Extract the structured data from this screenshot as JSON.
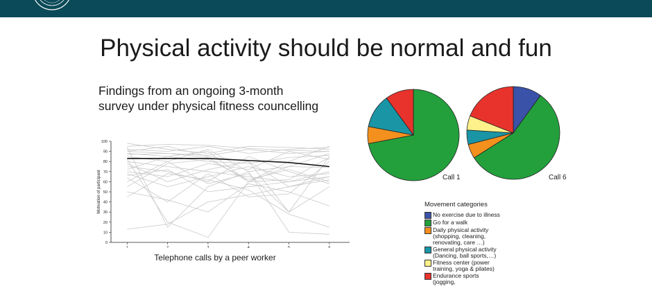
{
  "header": {
    "bar_color": "#0b4a58",
    "logo_icon": "university-seal-icon"
  },
  "slide": {
    "title": "Physical activity should be normal and fun",
    "subtitle_lines": [
      "Findings from an ongoing 3-month",
      "survey under physical fitness councelling"
    ]
  },
  "chart_data": [
    {
      "type": "line",
      "title": "",
      "xlabel": "Telephone calls by a peer worker",
      "ylabel": "Motivation of participant",
      "x": [
        1,
        2,
        3,
        4,
        5,
        6
      ],
      "xlim": [
        0.6,
        6.5
      ],
      "ylim": [
        0,
        100
      ],
      "yticks": [
        "0",
        "10",
        "20",
        "30",
        "40",
        "50",
        "60",
        "70",
        "80",
        "90",
        "100"
      ],
      "xticks": [
        "1",
        "2",
        "3",
        "4",
        "5",
        "6"
      ],
      "mean": {
        "values": [
          83,
          83,
          83,
          81,
          79,
          75
        ],
        "color": "#111111"
      },
      "individual_color": "#c8c8c8",
      "individual": [
        [
          95,
          97,
          96,
          93,
          91,
          90
        ],
        [
          92,
          90,
          95,
          88,
          92,
          94
        ],
        [
          90,
          88,
          86,
          92,
          88,
          90
        ],
        [
          88,
          85,
          80,
          78,
          84,
          86
        ],
        [
          85,
          80,
          92,
          70,
          75,
          88
        ],
        [
          80,
          75,
          70,
          65,
          60,
          70
        ],
        [
          78,
          60,
          72,
          80,
          55,
          62
        ],
        [
          75,
          70,
          60,
          85,
          70,
          58
        ],
        [
          72,
          85,
          90,
          60,
          80,
          95
        ],
        [
          70,
          65,
          78,
          72,
          90,
          82
        ],
        [
          68,
          55,
          65,
          75,
          65,
          68
        ],
        [
          66,
          72,
          50,
          55,
          60,
          65
        ],
        [
          64,
          40,
          68,
          45,
          48,
          80
        ],
        [
          60,
          80,
          58,
          68,
          30,
          55
        ],
        [
          55,
          78,
          82,
          62,
          72,
          60
        ],
        [
          50,
          42,
          30,
          58,
          50,
          36
        ],
        [
          45,
          68,
          62,
          52,
          28,
          15
        ],
        [
          90,
          95,
          85,
          80,
          30,
          85
        ],
        [
          98,
          92,
          88,
          95,
          94,
          92
        ],
        [
          87,
          88,
          84,
          60,
          62,
          84
        ],
        [
          82,
          20,
          5,
          60,
          75,
          74
        ],
        [
          13,
          18,
          40,
          47,
          55,
          65
        ],
        [
          94,
          15,
          55,
          70,
          10,
          8
        ]
      ]
    },
    {
      "type": "pie",
      "title": "Call 1",
      "slices": [
        {
          "name": "No exercise due to illness",
          "value": 0,
          "color": "#3a52a8"
        },
        {
          "name": "Go for a walk",
          "value": 72,
          "color": "#23a03c"
        },
        {
          "name": "Daily physical activity (shopping, cleaning, renovating, care …)",
          "value": 6,
          "color": "#f4901e"
        },
        {
          "name": "General physical activity (Dancing, ball sports,…)",
          "value": 12,
          "color": "#1a95a6"
        },
        {
          "name": "Fitness center (power training, yoga & pilates)",
          "value": 0,
          "color": "#fef08a"
        },
        {
          "name": "Endurance sports (jogging,",
          "value": 10,
          "color": "#e8332d"
        }
      ]
    },
    {
      "type": "pie",
      "title": "Call 6",
      "slices": [
        {
          "name": "No exercise due to illness",
          "value": 10,
          "color": "#3a52a8"
        },
        {
          "name": "Go for a walk",
          "value": 56,
          "color": "#23a03c"
        },
        {
          "name": "Daily physical activity (shopping, cleaning, renovating, care …)",
          "value": 5,
          "color": "#f4901e"
        },
        {
          "name": "General physical activity (Dancing, ball sports,…)",
          "value": 5,
          "color": "#1a95a6"
        },
        {
          "name": "Fitness center (power training, yoga & pilates)",
          "value": 5,
          "color": "#fef08a"
        },
        {
          "name": "Endurance sports (jogging,",
          "value": 19,
          "color": "#e8332d"
        }
      ]
    }
  ],
  "legend": {
    "title": "Movement categories",
    "items": [
      {
        "label": "No exercise due to illness",
        "color": "#3a52a8"
      },
      {
        "label": "Go for a walk",
        "color": "#23a03c"
      },
      {
        "label": "Daily physical activity (shopping, cleaning, renovating, care …)",
        "color": "#f4901e"
      },
      {
        "label": "General physical activity (Dancing, ball sports,…)",
        "color": "#1a95a6"
      },
      {
        "label": "Fitness center (power training, yoga & pilates)",
        "color": "#fef08a"
      },
      {
        "label": "Endurance sports (jogging,",
        "color": "#e8332d"
      }
    ]
  }
}
